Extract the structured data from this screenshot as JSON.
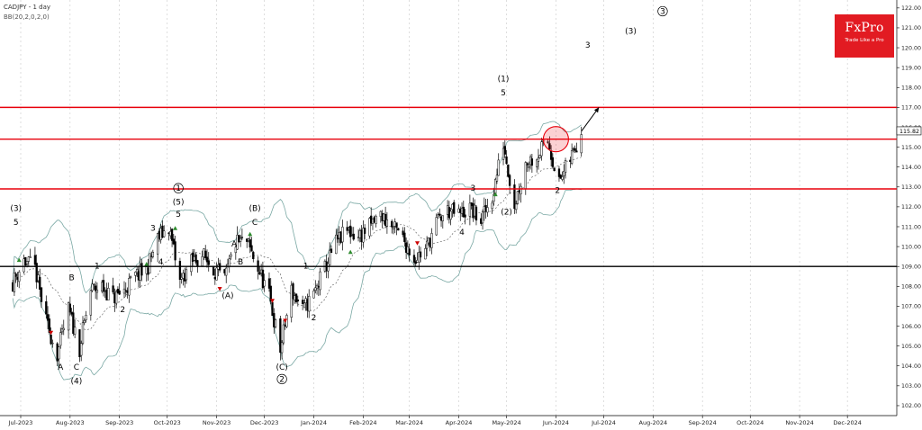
{
  "header": {
    "title": "CADJPY - 1 day",
    "indicator": "BB(20,2,0,2,0)"
  },
  "logo": {
    "brand": "FxPro",
    "tagline": "Trade Like a Pro"
  },
  "colors": {
    "resistance": "#e8000b",
    "support": "#000000",
    "bollinger": "#7aa8a4",
    "candle": "#000000",
    "marker_up": "#2e8b2e",
    "marker_down": "#cc0000",
    "highlight_circle": "#e8000b",
    "logo_bg": "#e21b22"
  },
  "chart_data": {
    "type": "candlestick",
    "title": "CADJPY - 1 day",
    "y_axis_ticks": [
      "122.00",
      "121.00",
      "120.00",
      "119.00",
      "118.00",
      "117.00",
      "116.00",
      "115.00",
      "114.00",
      "113.00",
      "112.00",
      "111.00",
      "110.00",
      "109.00",
      "108.00",
      "107.00",
      "106.00",
      "105.00",
      "104.00",
      "103.00",
      "102.00"
    ],
    "x_axis_ticks": [
      "Jul-2023",
      "Aug-2023",
      "Sep-2023",
      "Oct-2023",
      "Nov-2023",
      "Dec-2023",
      "Jan-2024",
      "Feb-2024",
      "Mar-2024",
      "Apr-2024",
      "May-2024",
      "Jun-2024",
      "Jul-2024",
      "Aug-2024",
      "Sep-2024",
      "Oct-2024",
      "Nov-2024",
      "Dec-2024"
    ],
    "ylim": [
      101.5,
      122.4
    ],
    "current_price_label": "115.82",
    "horizontal_levels": [
      {
        "value": 117.0,
        "kind": "resistance"
      },
      {
        "value": 115.4,
        "kind": "resistance"
      },
      {
        "value": 112.9,
        "kind": "resistance"
      },
      {
        "value": 109.0,
        "kind": "support"
      }
    ],
    "price_path": [
      {
        "date": "2023-06-26",
        "price": 108.2
      },
      {
        "date": "2023-07-03",
        "price": 109.3
      },
      {
        "date": "2023-07-10",
        "price": 108.9
      },
      {
        "date": "2023-07-17",
        "price": 106.2
      },
      {
        "date": "2023-07-24",
        "price": 104.6
      },
      {
        "date": "2023-07-31",
        "price": 106.8
      },
      {
        "date": "2023-08-07",
        "price": 104.9
      },
      {
        "date": "2023-08-14",
        "price": 107.8
      },
      {
        "date": "2023-08-21",
        "price": 108.0
      },
      {
        "date": "2023-08-28",
        "price": 107.4
      },
      {
        "date": "2023-09-04",
        "price": 107.8
      },
      {
        "date": "2023-09-11",
        "price": 108.5
      },
      {
        "date": "2023-09-18",
        "price": 108.8
      },
      {
        "date": "2023-09-25",
        "price": 110.4
      },
      {
        "date": "2023-10-02",
        "price": 111.0
      },
      {
        "date": "2023-10-09",
        "price": 108.2
      },
      {
        "date": "2023-10-16",
        "price": 109.2
      },
      {
        "date": "2023-10-23",
        "price": 109.6
      },
      {
        "date": "2023-10-30",
        "price": 108.9
      },
      {
        "date": "2023-11-06",
        "price": 108.3
      },
      {
        "date": "2023-11-13",
        "price": 110.2
      },
      {
        "date": "2023-11-20",
        "price": 110.2
      },
      {
        "date": "2023-11-27",
        "price": 108.9
      },
      {
        "date": "2023-12-04",
        "price": 107.5
      },
      {
        "date": "2023-12-11",
        "price": 104.8
      },
      {
        "date": "2023-12-18",
        "price": 107.8
      },
      {
        "date": "2023-12-25",
        "price": 106.8
      },
      {
        "date": "2024-01-01",
        "price": 107.6
      },
      {
        "date": "2024-01-08",
        "price": 108.9
      },
      {
        "date": "2024-01-15",
        "price": 110.2
      },
      {
        "date": "2024-01-22",
        "price": 110.8
      },
      {
        "date": "2024-01-29",
        "price": 110.5
      },
      {
        "date": "2024-02-05",
        "price": 111.0
      },
      {
        "date": "2024-02-12",
        "price": 111.6
      },
      {
        "date": "2024-02-19",
        "price": 111.0
      },
      {
        "date": "2024-02-26",
        "price": 110.4
      },
      {
        "date": "2024-03-04",
        "price": 109.4
      },
      {
        "date": "2024-03-11",
        "price": 109.8
      },
      {
        "date": "2024-03-18",
        "price": 111.2
      },
      {
        "date": "2024-03-25",
        "price": 111.8
      },
      {
        "date": "2024-04-01",
        "price": 111.6
      },
      {
        "date": "2024-04-08",
        "price": 111.9
      },
      {
        "date": "2024-04-15",
        "price": 111.3
      },
      {
        "date": "2024-04-22",
        "price": 112.5
      },
      {
        "date": "2024-04-29",
        "price": 115.2
      },
      {
        "date": "2024-05-06",
        "price": 112.1
      },
      {
        "date": "2024-05-13",
        "price": 114.2
      },
      {
        "date": "2024-05-20",
        "price": 114.6
      },
      {
        "date": "2024-05-27",
        "price": 115.3
      },
      {
        "date": "2024-06-03",
        "price": 113.2
      },
      {
        "date": "2024-06-10",
        "price": 114.4
      },
      {
        "date": "2024-06-17",
        "price": 115.8
      }
    ],
    "projection": {
      "from": {
        "date": "2024-06-17",
        "price": 115.8
      },
      "to": {
        "date": "2024-06-28",
        "price": 117.0
      }
    },
    "highlight_circle": {
      "date": "2024-06-01",
      "price": 115.4
    },
    "wave_labels": [
      {
        "text": "(3)",
        "date": "2023-06-28",
        "price": 111.8
      },
      {
        "text": "5",
        "date": "2023-06-28",
        "price": 111.1
      },
      {
        "text": "A",
        "date": "2023-07-26",
        "price": 103.8
      },
      {
        "text": "B",
        "date": "2023-08-02",
        "price": 108.3
      },
      {
        "text": "C",
        "date": "2023-08-05",
        "price": 103.8
      },
      {
        "text": "(4)",
        "date": "2023-08-05",
        "price": 103.1
      },
      {
        "text": "1",
        "date": "2023-08-18",
        "price": 108.9
      },
      {
        "text": "2",
        "date": "2023-09-03",
        "price": 106.7
      },
      {
        "text": "3",
        "date": "2023-09-22",
        "price": 110.8
      },
      {
        "text": "4",
        "date": "2023-09-27",
        "price": 109.1
      },
      {
        "text": "1",
        "date": "2023-10-08",
        "price": 112.8
      },
      {
        "text": "(5)",
        "date": "2023-10-08",
        "price": 112.1
      },
      {
        "text": "5",
        "date": "2023-10-08",
        "price": 111.5
      },
      {
        "text": "(A)",
        "date": "2023-11-08",
        "price": 107.4
      },
      {
        "text": "A",
        "date": "2023-11-12",
        "price": 110.0
      },
      {
        "text": "B",
        "date": "2023-11-16",
        "price": 109.1
      },
      {
        "text": "(B)",
        "date": "2023-11-25",
        "price": 111.8
      },
      {
        "text": "C",
        "date": "2023-11-25",
        "price": 111.1
      },
      {
        "text": "(C)",
        "date": "2023-12-12",
        "price": 103.8
      },
      {
        "text": "2",
        "date": "2023-12-12",
        "price": 103.2
      },
      {
        "text": "1",
        "date": "2023-12-27",
        "price": 108.9
      },
      {
        "text": "2",
        "date": "2024-01-01",
        "price": 106.3
      },
      {
        "text": "3",
        "date": "2024-04-10",
        "price": 112.8
      },
      {
        "text": "4",
        "date": "2024-04-03",
        "price": 110.6
      },
      {
        "text": "(1)",
        "date": "2024-04-29",
        "price": 118.3
      },
      {
        "text": "5",
        "date": "2024-04-29",
        "price": 117.6
      },
      {
        "text": "(2)",
        "date": "2024-05-01",
        "price": 111.6
      },
      {
        "text": "2",
        "date": "2024-06-02",
        "price": 112.7
      },
      {
        "text": "3",
        "date": "2024-06-21",
        "price": 120.0
      },
      {
        "text": "(3)",
        "date": "2024-07-18",
        "price": 120.7
      },
      {
        "text": "3",
        "date": "2024-08-07",
        "price": 121.7
      }
    ],
    "circled_labels": [
      "1",
      "2",
      "3"
    ],
    "legend": "none",
    "grid": "vertical dashed at month starts"
  }
}
